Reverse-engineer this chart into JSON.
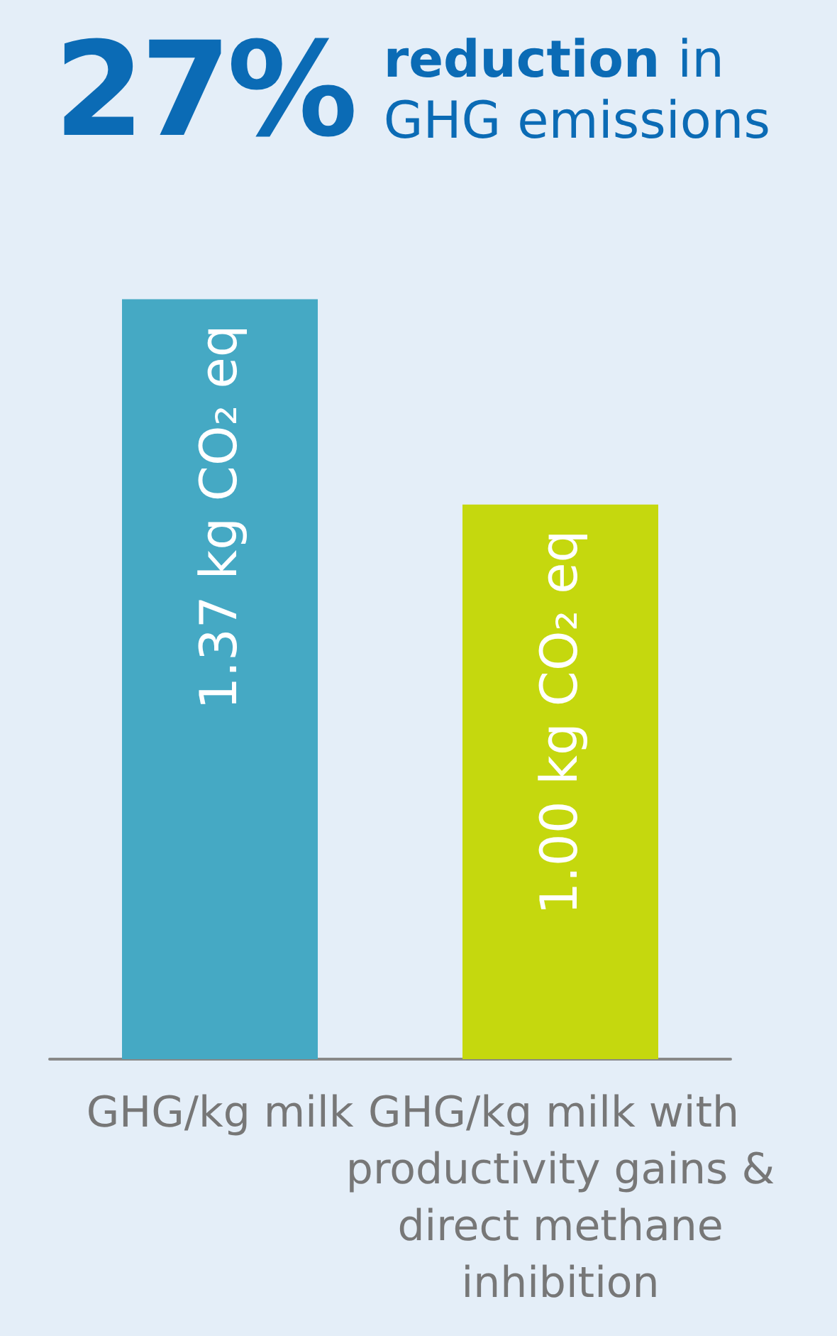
{
  "chart_data": {
    "type": "bar",
    "title": "27% reduction in GHG emissions",
    "categories": [
      "GHG/kg milk",
      "GHG/kg milk with productivity gains & direct methane inhibition"
    ],
    "values": [
      1.37,
      1.0
    ],
    "colors": [
      "#45a9c4",
      "#c5d80e"
    ],
    "value_labels": [
      "1.37 kg CO₂ eq",
      "1.00 kg CO₂ eq"
    ]
  }
}
